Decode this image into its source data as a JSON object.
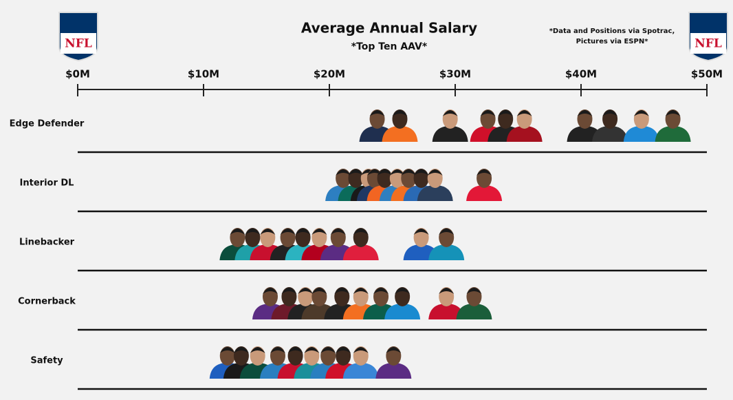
{
  "chart_data": {
    "type": "strip",
    "title": "Average Annual Salary",
    "subtitle": "*Top Ten AAV*",
    "note": [
      "*Data and Positions via Spotrac,",
      "Pictures via ESPN*"
    ],
    "logo_text": "NFL",
    "xlim": [
      0,
      50
    ],
    "xticks": [
      {
        "value": 0,
        "label": "$0M"
      },
      {
        "value": 10,
        "label": "$10M"
      },
      {
        "value": 20,
        "label": "$20M"
      },
      {
        "value": 30,
        "label": "$30M"
      },
      {
        "value": 40,
        "label": "$40M"
      },
      {
        "value": 50,
        "label": "$50M"
      }
    ],
    "categories": [
      "Edge Defender",
      "Interior DL",
      "Linebacker",
      "Cornerback",
      "Safety"
    ],
    "values": [
      [
        23.8,
        25.6,
        29.6,
        32.6,
        34.0,
        35.5,
        40.3,
        42.3,
        44.8,
        47.3
      ],
      [
        21.1,
        22.1,
        23.1,
        23.6,
        24.4,
        25.4,
        26.3,
        27.3,
        28.4,
        32.3
      ],
      [
        12.7,
        13.9,
        15.1,
        16.7,
        17.9,
        19.2,
        20.7,
        22.5,
        27.3,
        29.3
      ],
      [
        15.3,
        16.8,
        18.1,
        19.2,
        21.0,
        22.5,
        24.1,
        25.8,
        29.3,
        31.5
      ],
      [
        11.9,
        13.0,
        14.3,
        15.9,
        17.3,
        18.6,
        19.9,
        21.1,
        22.5,
        25.1
      ]
    ],
    "colors": [
      [
        "#1f2f4f",
        "#f36f21",
        "#222222",
        "#d0102a",
        "#222222",
        "#a5111f",
        "#222222",
        "#333333",
        "#1f8ad6",
        "#1f6b3a"
      ],
      [
        "#2d7fc1",
        "#0b6b5a",
        "#1a1a1a",
        "#203864",
        "#f26522",
        "#2f7fc0",
        "#f36f21",
        "#2a6ab4",
        "#2b3f5c",
        "#e31837"
      ],
      [
        "#0b4d3c",
        "#1fa0a8",
        "#c8102e",
        "#222222",
        "#2bb3c0",
        "#b3001e",
        "#5b2c83",
        "#e01f3d",
        "#1f5fbf",
        "#1592b8"
      ],
      [
        "#5b2c83",
        "#6e1a2a",
        "#222222",
        "#4d3a2a",
        "#222222",
        "#f36f21",
        "#0b5e4a",
        "#1a8ad0",
        "#c8102e",
        "#1b5e3a"
      ],
      [
        "#1f5fbf",
        "#1a1a1a",
        "#0b4d3c",
        "#2a7fc0",
        "#c8102e",
        "#1b8f9a",
        "#2a7fc0",
        "#d0102a",
        "#3a86d6",
        "#5b2c83"
      ]
    ]
  }
}
